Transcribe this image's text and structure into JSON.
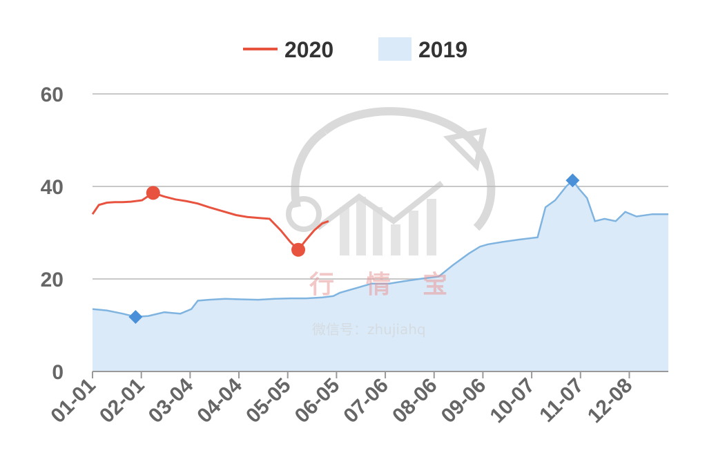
{
  "chart_data": {
    "type": "line",
    "xlabel": "",
    "ylabel": "",
    "ylim": [
      0,
      60
    ],
    "yticks": [
      0,
      20,
      40,
      60
    ],
    "x_tick_labels": [
      "01-01",
      "02-01",
      "03-04",
      "04-04",
      "05-05",
      "06-05",
      "07-06",
      "08-06",
      "09-06",
      "10-07",
      "11-07",
      "12-08"
    ],
    "grid": true,
    "legend_position": "top-center",
    "series": [
      {
        "name": "2020",
        "style": "line",
        "color": "#e8533f",
        "x": [
          "01-01",
          "01-05",
          "01-10",
          "01-15",
          "01-20",
          "01-25",
          "02-01",
          "02-08",
          "02-15",
          "02-22",
          "03-01",
          "03-08",
          "03-15",
          "03-22",
          "04-01",
          "04-08",
          "04-15",
          "04-22",
          "04-29",
          "05-05",
          "05-10",
          "05-15",
          "05-20",
          "05-25",
          "05-29"
        ],
        "values": [
          34.0,
          36.0,
          36.5,
          36.6,
          36.6,
          36.7,
          37.0,
          38.6,
          37.8,
          37.2,
          36.8,
          36.3,
          35.5,
          34.8,
          33.8,
          33.4,
          33.2,
          33.0,
          30.5,
          28.0,
          26.3,
          28.5,
          30.5,
          32.0,
          32.5
        ],
        "markers": [
          {
            "x": "02-08",
            "value": 38.6,
            "type": "max"
          },
          {
            "x": "05-10",
            "value": 26.3,
            "type": "min"
          }
        ]
      },
      {
        "name": "2019",
        "style": "area",
        "color": "#7fb4e0",
        "fill": "#dbeaf8",
        "x": [
          "01-01",
          "01-10",
          "01-20",
          "01-28",
          "02-05",
          "02-15",
          "02-25",
          "03-04",
          "03-08",
          "03-15",
          "03-25",
          "04-04",
          "04-15",
          "04-25",
          "05-05",
          "05-15",
          "05-25",
          "06-01",
          "06-05",
          "06-15",
          "06-20",
          "06-25",
          "07-06",
          "07-15",
          "07-25",
          "08-06",
          "08-15",
          "08-25",
          "09-01",
          "09-06",
          "09-15",
          "09-25",
          "10-07",
          "10-12",
          "10-18",
          "10-25",
          "10-29",
          "11-02",
          "11-07",
          "11-12",
          "11-18",
          "11-25",
          "12-01",
          "12-08",
          "12-18",
          "12-28"
        ],
        "values": [
          13.5,
          13.2,
          12.5,
          11.8,
          12.0,
          12.8,
          12.5,
          13.5,
          15.3,
          15.5,
          15.7,
          15.6,
          15.5,
          15.7,
          15.8,
          15.8,
          16.0,
          16.3,
          17.0,
          18.0,
          18.5,
          19.0,
          19.0,
          19.5,
          20.0,
          20.5,
          23.0,
          25.5,
          27.0,
          27.5,
          28.0,
          28.5,
          29.0,
          35.5,
          37.0,
          40.0,
          41.3,
          39.5,
          37.5,
          32.5,
          33.0,
          32.5,
          34.5,
          33.5,
          34.0,
          34.0
        ],
        "markers": [
          {
            "x": "01-28",
            "value": 11.8,
            "type": "min"
          },
          {
            "x": "10-29",
            "value": 41.3,
            "type": "max"
          }
        ]
      }
    ]
  },
  "watermark": {
    "title_chars": [
      "行",
      "情",
      "宝"
    ],
    "subtitle": "微信号：zhujiahq",
    "logo_icon": "pig-chart-logo-icon"
  },
  "colors": {
    "series_2020": "#e8533f",
    "series_2019_line": "#7fb4e0",
    "series_2019_fill": "#dbeaf8",
    "marker_2019": "#4a90d9",
    "grid": "#c8c8c8",
    "axis": "#999999"
  }
}
